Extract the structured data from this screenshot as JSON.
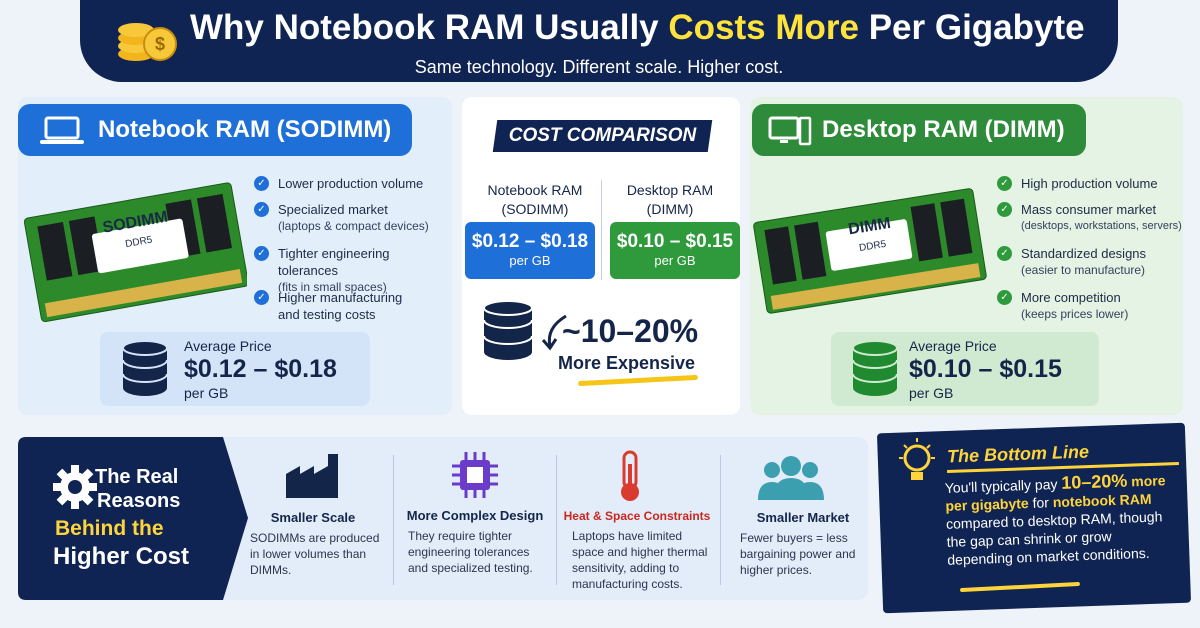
{
  "header": {
    "title_pre": "Why Notebook RAM Usually ",
    "title_highlight": "Costs More",
    "title_post": " Per Gigabyte",
    "subtitle": "Same technology. Different scale. Higher cost."
  },
  "notebook": {
    "heading": "Notebook RAM (SODIMM)",
    "chip_label": "SODIMM",
    "chip_sub": "DDR5",
    "bullets": [
      {
        "text": "Lower production volume"
      },
      {
        "text": "Specialized market",
        "note": "(laptops & compact devices)"
      },
      {
        "text": "Tighter engineering tolerances",
        "note": "(fits in small spaces)"
      },
      {
        "text": "Higher manufacturing and testing costs"
      }
    ],
    "price_label": "Average Price",
    "price": "$0.12 – $0.18",
    "unit": "per GB"
  },
  "comparison": {
    "title": "COST COMPARISON",
    "left_label": "Notebook RAM (SODIMM)",
    "right_label": "Desktop RAM (DIMM)",
    "left_price": "$0.12 – $0.18",
    "left_unit": "per GB",
    "right_price": "$0.10 – $0.15",
    "right_unit": "per GB",
    "difference": "~10–20%",
    "difference_label": "More Expensive"
  },
  "desktop": {
    "heading": "Desktop RAM (DIMM)",
    "chip_label": "DIMM",
    "chip_sub": "DDR5",
    "bullets": [
      {
        "text": "High production volume"
      },
      {
        "text": "Mass consumer market",
        "note": "(desktops, workstations, servers)"
      },
      {
        "text": "Standardized designs",
        "note": "(easier to manufacture)"
      },
      {
        "text": "More competition",
        "note": "(keeps prices lower)"
      }
    ],
    "price_label": "Average Price",
    "price": "$0.10 – $0.15",
    "unit": "per GB"
  },
  "reasons": {
    "title_1": "The Real",
    "title_2": "Reasons",
    "title_3": "Behind the",
    "title_4": "Higher Cost",
    "items": [
      {
        "title": "Smaller Scale",
        "text": "SODIMMs are produced in lower volumes than DIMMs."
      },
      {
        "title": "More Complex Design",
        "text": "They require tighter engineering tolerances and specialized testing."
      },
      {
        "title": "Heat & Space Constraints",
        "text": "Laptops have limited space and higher thermal sensitivity, adding to manufacturing costs."
      },
      {
        "title": "Smaller Market",
        "text": "Fewer buyers = less bargaining power and higher prices."
      }
    ]
  },
  "bottom_line": {
    "title": "The Bottom Line",
    "text_1": "You'll typically pay ",
    "highlight_1": "10–20%",
    "highlight_2": "more per gigabyte",
    "text_2": " for ",
    "highlight_3": "notebook RAM",
    "text_3": " compared to desktop RAM, though the gap can shrink or grow depending on market conditions."
  }
}
